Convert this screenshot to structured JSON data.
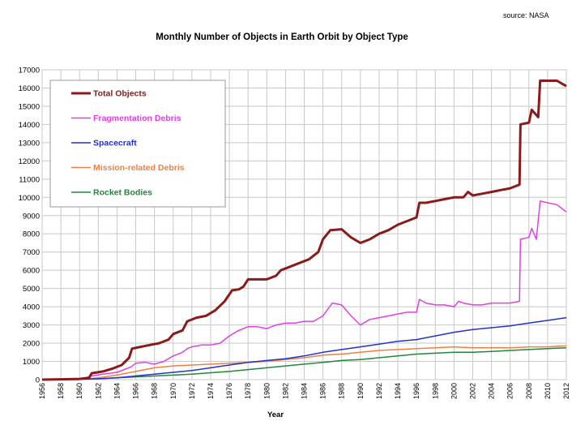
{
  "chart_data": {
    "type": "line",
    "title": "Monthly Number of Objects in Earth Orbit by Object Type",
    "source": "source: NASA",
    "xlabel": "Year",
    "ylabel": "",
    "xlim": [
      1956,
      2012
    ],
    "ylim": [
      0,
      17000
    ],
    "yticks": [
      0,
      1000,
      2000,
      3000,
      4000,
      5000,
      6000,
      7000,
      8000,
      9000,
      10000,
      11000,
      12000,
      13000,
      14000,
      15000,
      16000,
      17000
    ],
    "xticks": [
      1956,
      1958,
      1960,
      1962,
      1964,
      1966,
      1968,
      1970,
      1972,
      1974,
      1976,
      1978,
      1980,
      1982,
      1984,
      1986,
      1988,
      1990,
      1992,
      1994,
      1996,
      1998,
      2000,
      2002,
      2004,
      2006,
      2008,
      2010,
      2012
    ],
    "grid": true,
    "legend_position": "top-left",
    "series": [
      {
        "name": "Total Objects",
        "color": "#8b1a1a",
        "width": 3,
        "points": [
          [
            1956,
            0
          ],
          [
            1958,
            20
          ],
          [
            1960,
            40
          ],
          [
            1961,
            100
          ],
          [
            1961.3,
            350
          ],
          [
            1962.5,
            450
          ],
          [
            1963.5,
            600
          ],
          [
            1964.5,
            800
          ],
          [
            1965.3,
            1200
          ],
          [
            1965.6,
            1700
          ],
          [
            1966.5,
            1800
          ],
          [
            1967.5,
            1900
          ],
          [
            1968.5,
            2000
          ],
          [
            1969.5,
            2200
          ],
          [
            1970,
            2500
          ],
          [
            1971,
            2700
          ],
          [
            1971.5,
            3200
          ],
          [
            1972.5,
            3400
          ],
          [
            1973.5,
            3500
          ],
          [
            1974.5,
            3800
          ],
          [
            1975.5,
            4300
          ],
          [
            1976.3,
            4900
          ],
          [
            1977,
            4950
          ],
          [
            1977.5,
            5100
          ],
          [
            1978,
            5500
          ],
          [
            1979,
            5500
          ],
          [
            1980,
            5500
          ],
          [
            1981,
            5700
          ],
          [
            1981.5,
            6000
          ],
          [
            1982.5,
            6200
          ],
          [
            1983.5,
            6400
          ],
          [
            1984.5,
            6600
          ],
          [
            1985.5,
            7000
          ],
          [
            1986,
            7700
          ],
          [
            1986.8,
            8200
          ],
          [
            1988,
            8250
          ],
          [
            1989,
            7800
          ],
          [
            1990,
            7500
          ],
          [
            1991,
            7700
          ],
          [
            1992,
            8000
          ],
          [
            1993,
            8200
          ],
          [
            1994,
            8500
          ],
          [
            1995,
            8700
          ],
          [
            1996,
            8900
          ],
          [
            1996.3,
            9700
          ],
          [
            1997,
            9700
          ],
          [
            1998,
            9800
          ],
          [
            1999,
            9900
          ],
          [
            2000,
            10000
          ],
          [
            2001,
            10000
          ],
          [
            2001.5,
            10300
          ],
          [
            2002,
            10100
          ],
          [
            2003,
            10200
          ],
          [
            2004,
            10300
          ],
          [
            2005,
            10400
          ],
          [
            2006,
            10500
          ],
          [
            2007,
            10700
          ],
          [
            2007.1,
            14000
          ],
          [
            2008,
            14100
          ],
          [
            2008.3,
            14800
          ],
          [
            2009,
            14400
          ],
          [
            2009.2,
            16400
          ],
          [
            2010,
            16400
          ],
          [
            2011,
            16400
          ],
          [
            2012,
            16100
          ]
        ]
      },
      {
        "name": "Fragmentation Debris",
        "color": "#e040e0",
        "width": 1.5,
        "points": [
          [
            1956,
            0
          ],
          [
            1960,
            0
          ],
          [
            1961.3,
            200
          ],
          [
            1962.5,
            300
          ],
          [
            1964,
            400
          ],
          [
            1965.5,
            700
          ],
          [
            1966,
            900
          ],
          [
            1967,
            950
          ],
          [
            1968,
            850
          ],
          [
            1969,
            1000
          ],
          [
            1970,
            1300
          ],
          [
            1971,
            1500
          ],
          [
            1971.5,
            1700
          ],
          [
            1972,
            1800
          ],
          [
            1973,
            1900
          ],
          [
            1974,
            1900
          ],
          [
            1975,
            2000
          ],
          [
            1976,
            2400
          ],
          [
            1977,
            2700
          ],
          [
            1978,
            2900
          ],
          [
            1979,
            2900
          ],
          [
            1980,
            2800
          ],
          [
            1981,
            3000
          ],
          [
            1982,
            3100
          ],
          [
            1983,
            3100
          ],
          [
            1984,
            3200
          ],
          [
            1985,
            3200
          ],
          [
            1986,
            3500
          ],
          [
            1987,
            4200
          ],
          [
            1988,
            4100
          ],
          [
            1989,
            3500
          ],
          [
            1990,
            3000
          ],
          [
            1991,
            3300
          ],
          [
            1992,
            3400
          ],
          [
            1993,
            3500
          ],
          [
            1994,
            3600
          ],
          [
            1995,
            3700
          ],
          [
            1996,
            3700
          ],
          [
            1996.3,
            4400
          ],
          [
            1997,
            4200
          ],
          [
            1998,
            4100
          ],
          [
            1999,
            4100
          ],
          [
            2000,
            4000
          ],
          [
            2000.5,
            4300
          ],
          [
            2001,
            4200
          ],
          [
            2002,
            4100
          ],
          [
            2003,
            4100
          ],
          [
            2004,
            4200
          ],
          [
            2005,
            4200
          ],
          [
            2006,
            4200
          ],
          [
            2007,
            4300
          ],
          [
            2007.1,
            7700
          ],
          [
            2008,
            7800
          ],
          [
            2008.3,
            8300
          ],
          [
            2008.8,
            7700
          ],
          [
            2009.2,
            9800
          ],
          [
            2010,
            9700
          ],
          [
            2011,
            9600
          ],
          [
            2012,
            9200
          ]
        ]
      },
      {
        "name": "Spacecraft",
        "color": "#2233cc",
        "width": 1.5,
        "points": [
          [
            1956,
            0
          ],
          [
            1960,
            20
          ],
          [
            1962,
            50
          ],
          [
            1964,
            100
          ],
          [
            1966,
            200
          ],
          [
            1968,
            300
          ],
          [
            1970,
            400
          ],
          [
            1972,
            500
          ],
          [
            1974,
            650
          ],
          [
            1976,
            800
          ],
          [
            1978,
            950
          ],
          [
            1980,
            1050
          ],
          [
            1982,
            1150
          ],
          [
            1984,
            1300
          ],
          [
            1986,
            1500
          ],
          [
            1988,
            1650
          ],
          [
            1990,
            1800
          ],
          [
            1992,
            1950
          ],
          [
            1994,
            2100
          ],
          [
            1996,
            2200
          ],
          [
            1998,
            2400
          ],
          [
            2000,
            2600
          ],
          [
            2002,
            2750
          ],
          [
            2004,
            2850
          ],
          [
            2006,
            2950
          ],
          [
            2008,
            3100
          ],
          [
            2010,
            3250
          ],
          [
            2012,
            3400
          ]
        ]
      },
      {
        "name": "Mission-related Debris",
        "color": "#f08040",
        "width": 1.5,
        "points": [
          [
            1956,
            0
          ],
          [
            1960,
            20
          ],
          [
            1962,
            100
          ],
          [
            1964,
            250
          ],
          [
            1966,
            450
          ],
          [
            1968,
            650
          ],
          [
            1970,
            750
          ],
          [
            1972,
            800
          ],
          [
            1974,
            850
          ],
          [
            1976,
            900
          ],
          [
            1978,
            950
          ],
          [
            1980,
            1000
          ],
          [
            1982,
            1100
          ],
          [
            1984,
            1200
          ],
          [
            1986,
            1350
          ],
          [
            1988,
            1400
          ],
          [
            1990,
            1500
          ],
          [
            1992,
            1600
          ],
          [
            1994,
            1650
          ],
          [
            1996,
            1700
          ],
          [
            1998,
            1750
          ],
          [
            2000,
            1800
          ],
          [
            2002,
            1750
          ],
          [
            2004,
            1750
          ],
          [
            2006,
            1750
          ],
          [
            2008,
            1800
          ],
          [
            2010,
            1800
          ],
          [
            2012,
            1850
          ]
        ]
      },
      {
        "name": "Rocket Bodies",
        "color": "#208838",
        "width": 1.5,
        "points": [
          [
            1956,
            0
          ],
          [
            1960,
            20
          ],
          [
            1962,
            50
          ],
          [
            1964,
            100
          ],
          [
            1966,
            150
          ],
          [
            1968,
            200
          ],
          [
            1970,
            250
          ],
          [
            1972,
            300
          ],
          [
            1974,
            380
          ],
          [
            1976,
            450
          ],
          [
            1978,
            550
          ],
          [
            1980,
            650
          ],
          [
            1982,
            750
          ],
          [
            1984,
            850
          ],
          [
            1986,
            950
          ],
          [
            1988,
            1050
          ],
          [
            1990,
            1100
          ],
          [
            1992,
            1200
          ],
          [
            1994,
            1300
          ],
          [
            1996,
            1400
          ],
          [
            1998,
            1450
          ],
          [
            2000,
            1500
          ],
          [
            2002,
            1500
          ],
          [
            2004,
            1550
          ],
          [
            2006,
            1600
          ],
          [
            2008,
            1650
          ],
          [
            2010,
            1700
          ],
          [
            2012,
            1750
          ]
        ]
      }
    ]
  }
}
